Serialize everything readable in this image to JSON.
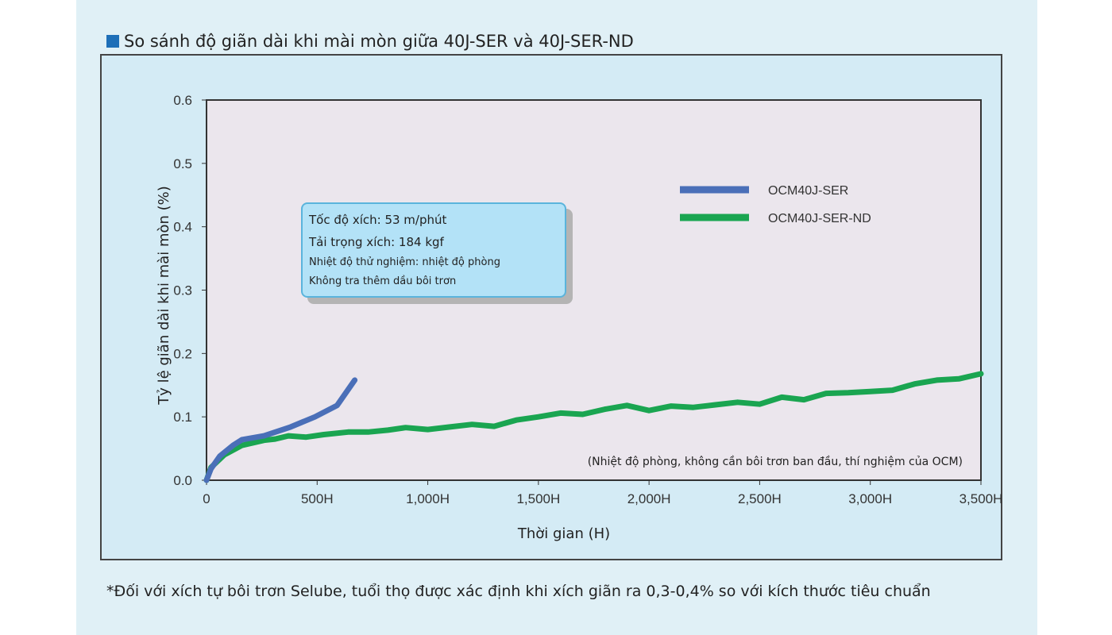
{
  "heading": {
    "title": "So sánh độ giãn dài khi mài mòn giữa 40J-SER và 40J-SER-ND",
    "marker_color": "#1e6fb8"
  },
  "footnote": "*Đối với xích tự bôi trơn Selube, tuổi thọ được xác định khi xích giãn ra 0,3-0,4% so với kích thước tiêu chuẩn",
  "note_box": {
    "line1": "Tốc độ xích: 53 m/phút",
    "line2": "Tải trọng xích: 184 kgf",
    "line3": "Nhiệt độ thử nghiệm: nhiệt độ phòng",
    "line4": "Không tra thêm dầu bôi trơn"
  },
  "chart_data": {
    "type": "line",
    "xlabel": "Thời gian (H)",
    "ylabel": "Tỷ lệ giãn dài khi mài mòn (%)",
    "xlim": [
      0,
      3500
    ],
    "ylim": [
      0,
      0.6
    ],
    "x_ticks": [
      {
        "value": 0,
        "label": "0"
      },
      {
        "value": 500,
        "label": "500H"
      },
      {
        "value": 1000,
        "label": "1,000H"
      },
      {
        "value": 1500,
        "label": "1,500H"
      },
      {
        "value": 2000,
        "label": "2,000H"
      },
      {
        "value": 2500,
        "label": "2,500H"
      },
      {
        "value": 3000,
        "label": "3,000H"
      },
      {
        "value": 3500,
        "label": "3,500H"
      }
    ],
    "y_ticks": [
      {
        "value": 0,
        "label": "0.0"
      },
      {
        "value": 0.1,
        "label": "0.1"
      },
      {
        "value": 0.2,
        "label": "0.2"
      },
      {
        "value": 0.3,
        "label": "0.3"
      },
      {
        "value": 0.4,
        "label": "0.4"
      },
      {
        "value": 0.5,
        "label": "0.5"
      },
      {
        "value": 0.6,
        "label": "0.6"
      }
    ],
    "annotation": "(Nhiệt độ phòng, không cần bôi trơn ban đầu, thí nghiệm của OCM)",
    "legend_position": "top-right",
    "grid": false,
    "series": [
      {
        "name": "OCM40J-SER",
        "color": "#4a6fb8",
        "x": [
          0,
          20,
          60,
          120,
          160,
          260,
          380,
          490,
          590,
          670
        ],
        "y": [
          0.0,
          0.018,
          0.038,
          0.055,
          0.064,
          0.07,
          0.084,
          0.1,
          0.118,
          0.158
        ]
      },
      {
        "name": "OCM40J-SER-ND",
        "color": "#1aa551",
        "x": [
          0,
          20,
          80,
          160,
          260,
          310,
          370,
          450,
          530,
          640,
          730,
          820,
          900,
          1000,
          1100,
          1200,
          1300,
          1400,
          1500,
          1600,
          1700,
          1800,
          1900,
          2000,
          2100,
          2200,
          2300,
          2400,
          2500,
          2600,
          2700,
          2800,
          2900,
          3000,
          3100,
          3200,
          3300,
          3400,
          3500
        ],
        "y": [
          0.0,
          0.02,
          0.04,
          0.055,
          0.063,
          0.065,
          0.07,
          0.068,
          0.072,
          0.076,
          0.076,
          0.079,
          0.083,
          0.08,
          0.084,
          0.088,
          0.085,
          0.095,
          0.1,
          0.106,
          0.104,
          0.112,
          0.118,
          0.11,
          0.117,
          0.115,
          0.119,
          0.123,
          0.12,
          0.131,
          0.127,
          0.137,
          0.138,
          0.14,
          0.142,
          0.152,
          0.158,
          0.16,
          0.168
        ]
      }
    ]
  }
}
